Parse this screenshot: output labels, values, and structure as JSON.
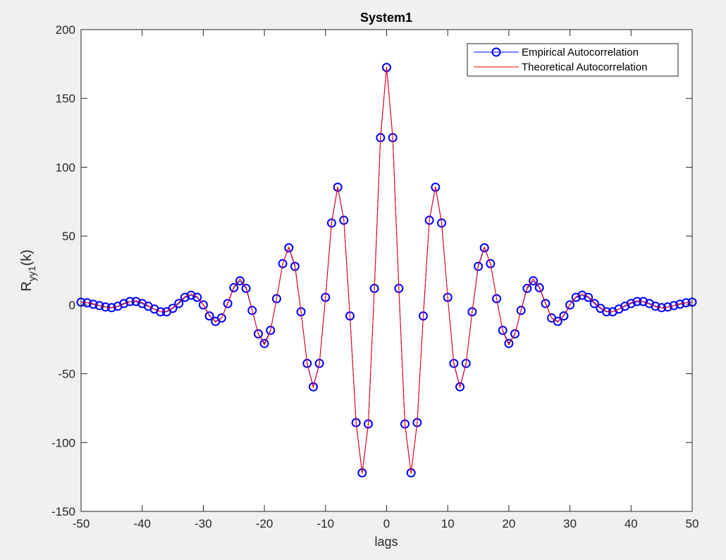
{
  "chart_data": {
    "type": "line",
    "title": "System1",
    "xlabel": "lags",
    "ylabel": "R",
    "ylabel_subscript": "yy1",
    "ylabel_suffix": "(k)",
    "xlim": [
      -50,
      50
    ],
    "ylim": [
      -150,
      200
    ],
    "xticks": [
      -50,
      -40,
      -30,
      -20,
      -10,
      0,
      10,
      20,
      30,
      40,
      50
    ],
    "yticks": [
      -150,
      -100,
      -50,
      0,
      50,
      100,
      150,
      200
    ],
    "grid": false,
    "legend_position": "top-right",
    "x": [
      -50,
      -49,
      -48,
      -47,
      -46,
      -45,
      -44,
      -43,
      -42,
      -41,
      -40,
      -39,
      -38,
      -37,
      -36,
      -35,
      -34,
      -33,
      -32,
      -31,
      -30,
      -29,
      -28,
      -27,
      -26,
      -25,
      -24,
      -23,
      -22,
      -21,
      -20,
      -19,
      -18,
      -17,
      -16,
      -15,
      -14,
      -13,
      -12,
      -11,
      -10,
      -9,
      -8,
      -7,
      -6,
      -5,
      -4,
      -3,
      -2,
      -1,
      0,
      1,
      2,
      3,
      4,
      5,
      6,
      7,
      8,
      9,
      10,
      11,
      12,
      13,
      14,
      15,
      16,
      17,
      18,
      19,
      20,
      21,
      22,
      23,
      24,
      25,
      26,
      27,
      28,
      29,
      30,
      31,
      32,
      33,
      34,
      35,
      36,
      37,
      38,
      39,
      40,
      41,
      42,
      43,
      44,
      45,
      46,
      47,
      48,
      49,
      50
    ],
    "series": [
      {
        "name": "Empirical Autocorrelation",
        "color": "#0000ff",
        "marker": "circle",
        "values": [
          2,
          1.5,
          0.5,
          -0.5,
          -1.5,
          -2,
          -1,
          1,
          2.5,
          2.5,
          1,
          -1,
          -3,
          -5,
          -5,
          -2.5,
          1,
          5.5,
          7,
          5.5,
          0,
          -8,
          -12,
          -9.5,
          1,
          12.5,
          17.5,
          12,
          -4,
          -21,
          -28,
          -18.5,
          4.5,
          30,
          41.5,
          28,
          -5,
          -42.5,
          -59.5,
          -42.5,
          5.5,
          59.5,
          85.5,
          61.5,
          -8,
          -85.5,
          -122,
          -86.5,
          12,
          121.5,
          172.5,
          121.5,
          12,
          -86.5,
          -122,
          -85.5,
          -8,
          61.5,
          85.5,
          59.5,
          5.5,
          -42.5,
          -59.5,
          -42.5,
          -5,
          28,
          41.5,
          30,
          4.5,
          -18.5,
          -28,
          -21,
          -4,
          12,
          17.5,
          12.5,
          1,
          -9.5,
          -12,
          -8,
          0,
          5.5,
          7,
          5.5,
          1,
          -2.5,
          -5,
          -5,
          -3,
          -1,
          1,
          2.5,
          2.5,
          1,
          -1,
          -2,
          -1.5,
          -0.5,
          0.5,
          1.5,
          2
        ]
      },
      {
        "name": "Theoretical Autocorrelation",
        "color": "#ff0000",
        "marker": "none",
        "values": [
          2,
          1.6,
          0.8,
          -0.5,
          -1.6,
          -2.2,
          -1.3,
          0.6,
          2.3,
          3,
          1.8,
          -0.6,
          -3.2,
          -5,
          -4.6,
          -2,
          1.8,
          6,
          8,
          6,
          0.3,
          -7.5,
          -12.5,
          -9.5,
          1.5,
          13,
          19,
          13,
          -3.5,
          -21,
          -29,
          -19,
          4.5,
          30,
          42,
          29,
          -5,
          -43,
          -60,
          -43,
          5.5,
          60,
          86,
          62,
          -8,
          -86,
          -122.5,
          -87,
          12,
          122,
          173,
          122,
          12,
          -87,
          -122.5,
          -86,
          -8,
          62,
          86,
          60,
          5.5,
          -43,
          -60,
          -43,
          -5,
          29,
          42,
          30,
          4.5,
          -19,
          -29,
          -21,
          -3.5,
          13,
          19,
          13,
          1.5,
          -9.5,
          -12.5,
          -7.5,
          0.3,
          6,
          8,
          6,
          1.8,
          -2,
          -4.6,
          -5,
          -3.2,
          -0.6,
          1.8,
          3,
          2.3,
          0.6,
          -1.3,
          -2.2,
          -1.6,
          -0.5,
          0.8,
          1.6,
          2
        ]
      }
    ]
  }
}
